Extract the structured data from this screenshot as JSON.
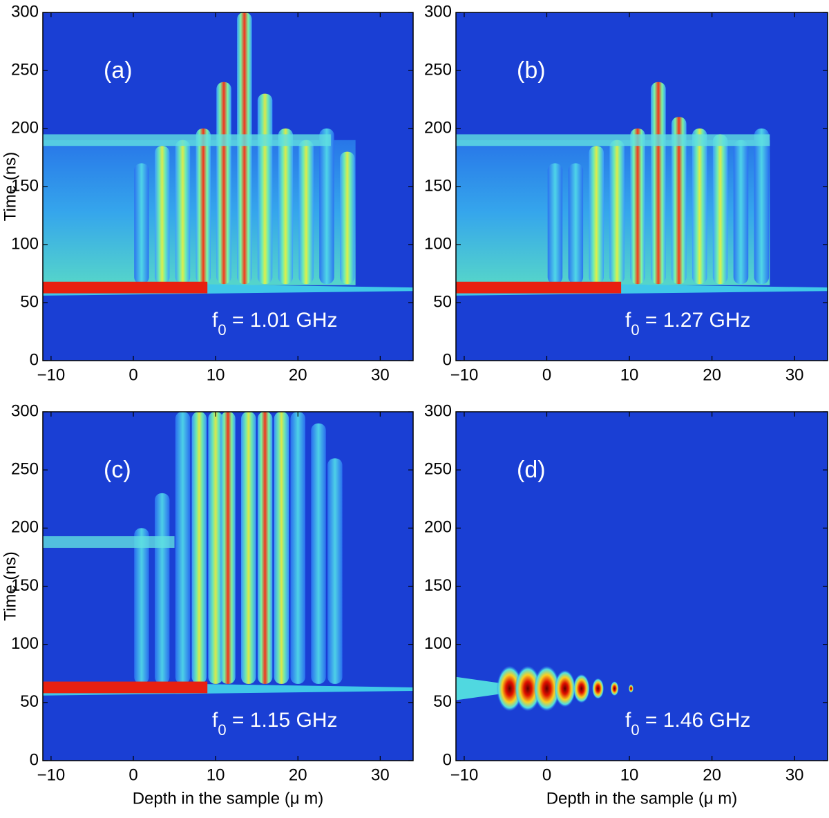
{
  "chart_data": [
    {
      "type": "heatmap",
      "panel_label": "(a)",
      "annotation": [
        "f",
        "0",
        " = 1.01 GHz"
      ],
      "ylabel": "Time (ns)",
      "xlim": [
        -11,
        34
      ],
      "ylim": [
        0,
        300
      ],
      "xticks": [
        {
          "value": -10,
          "label": "−10"
        },
        0,
        10,
        20,
        30
      ],
      "yticks": [
        0,
        50,
        100,
        150,
        200,
        250,
        300
      ]
    },
    {
      "type": "heatmap",
      "panel_label": "(b)",
      "annotation": [
        "f",
        "0",
        " = 1.27 GHz"
      ],
      "xlim": [
        -11,
        34
      ],
      "ylim": [
        0,
        300
      ],
      "xticks": [
        {
          "value": -10,
          "label": "−10"
        },
        0,
        10,
        20,
        30
      ],
      "yticks": [
        0,
        50,
        100,
        150,
        200,
        250,
        300
      ]
    },
    {
      "type": "heatmap",
      "panel_label": "(c)",
      "annotation": [
        "f",
        "0",
        " = 1.15 GHz"
      ],
      "ylabel": "Time (ns)",
      "xlabel": "Depth in the sample (μ m)",
      "xlim": [
        -11,
        34
      ],
      "ylim": [
        0,
        300
      ],
      "xticks": [
        {
          "value": -10,
          "label": "−10"
        },
        0,
        10,
        20,
        30
      ],
      "yticks": [
        0,
        50,
        100,
        150,
        200,
        250,
        300
      ]
    },
    {
      "type": "heatmap",
      "panel_label": "(d)",
      "annotation": [
        "f",
        "0",
        " = 1.46 GHz"
      ],
      "xlabel": "Depth in the sample (μ m)",
      "xlim": [
        -11,
        34
      ],
      "ylim": [
        0,
        300
      ],
      "xticks": [
        {
          "value": -10,
          "label": "−10"
        },
        0,
        10,
        20,
        30
      ],
      "yticks": [
        0,
        50,
        100,
        150,
        200,
        250,
        300
      ]
    }
  ]
}
